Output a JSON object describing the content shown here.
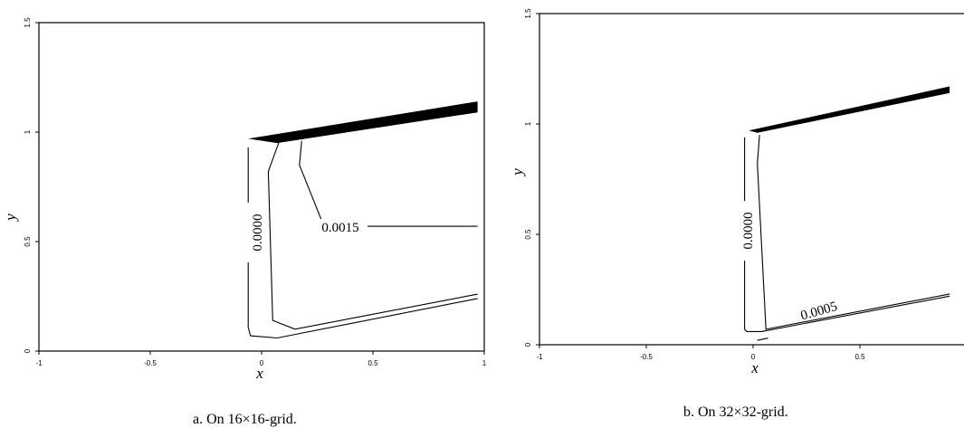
{
  "charts": [
    {
      "caption": "a. On 16×16-grid.",
      "xlabel": "x",
      "ylabel": "y",
      "xticks": [
        "-1",
        "-0.5",
        "0",
        "0.5",
        "1"
      ],
      "yticks": [
        "0",
        "0.5",
        "1",
        "1.5"
      ],
      "contour_labels": [
        "0.0000",
        "0.0015"
      ]
    },
    {
      "caption": "b. On 32×32-grid.",
      "xlabel": "x",
      "ylabel": "y",
      "xticks": [
        "-1",
        "-0.5",
        "0",
        "0.5"
      ],
      "yticks": [
        "0",
        "0.5",
        "1",
        "1.5"
      ],
      "contour_labels": [
        "0.0000",
        "0.0005"
      ]
    }
  ],
  "chart_data": [
    {
      "type": "contour",
      "xlim": [
        -1,
        1
      ],
      "ylim": [
        0,
        1.5
      ],
      "xlabel": "x",
      "ylabel": "y",
      "xticks": [
        -1,
        -0.5,
        0,
        0.5,
        1
      ],
      "yticks": [
        0,
        0.5,
        1,
        1.5
      ],
      "wedge": {
        "x": [
          -0.06,
          0.97,
          0.97,
          0.07
        ],
        "y": [
          0.97,
          1.14,
          1.09,
          0.95
        ]
      },
      "contours": [
        {
          "label": "0.0000",
          "x": [
            -0.06,
            -0.06,
            -0.05,
            0.07,
            0.97
          ],
          "y": [
            0.93,
            0.11,
            0.07,
            0.06,
            0.24
          ]
        },
        {
          "label": "",
          "x": [
            0.08,
            0.03,
            0.05,
            0.15,
            0.97
          ],
          "y": [
            0.96,
            0.82,
            0.14,
            0.1,
            0.26
          ]
        },
        {
          "label": "0.0015",
          "x": [
            0.18,
            0.17,
            0.28,
            0.97
          ],
          "y": [
            0.96,
            0.85,
            0.57,
            0.57
          ]
        }
      ]
    },
    {
      "type": "contour",
      "xlim": [
        -1,
        1
      ],
      "ylim": [
        0,
        1.5
      ],
      "xlabel": "x",
      "ylabel": "y",
      "xticks": [
        -1,
        -0.5,
        0,
        0.5
      ],
      "yticks": [
        0,
        0.5,
        1,
        1.5
      ],
      "wedge": {
        "x": [
          -0.02,
          0.92,
          0.92,
          0.02
        ],
        "y": [
          0.97,
          1.17,
          1.14,
          0.96
        ]
      },
      "contours": [
        {
          "label": "0.0000",
          "x": [
            -0.04,
            -0.04,
            -0.03,
            0.04,
            0.92
          ],
          "y": [
            0.94,
            0.07,
            0.06,
            0.06,
            0.22
          ]
        },
        {
          "label": "0.0005",
          "x": [
            0.03,
            0.02,
            0.06,
            0.92
          ],
          "y": [
            0.95,
            0.82,
            0.07,
            0.23
          ]
        },
        {
          "label": "",
          "x": [
            0.02,
            0.07
          ],
          "y": [
            0.02,
            0.03
          ]
        }
      ]
    }
  ]
}
